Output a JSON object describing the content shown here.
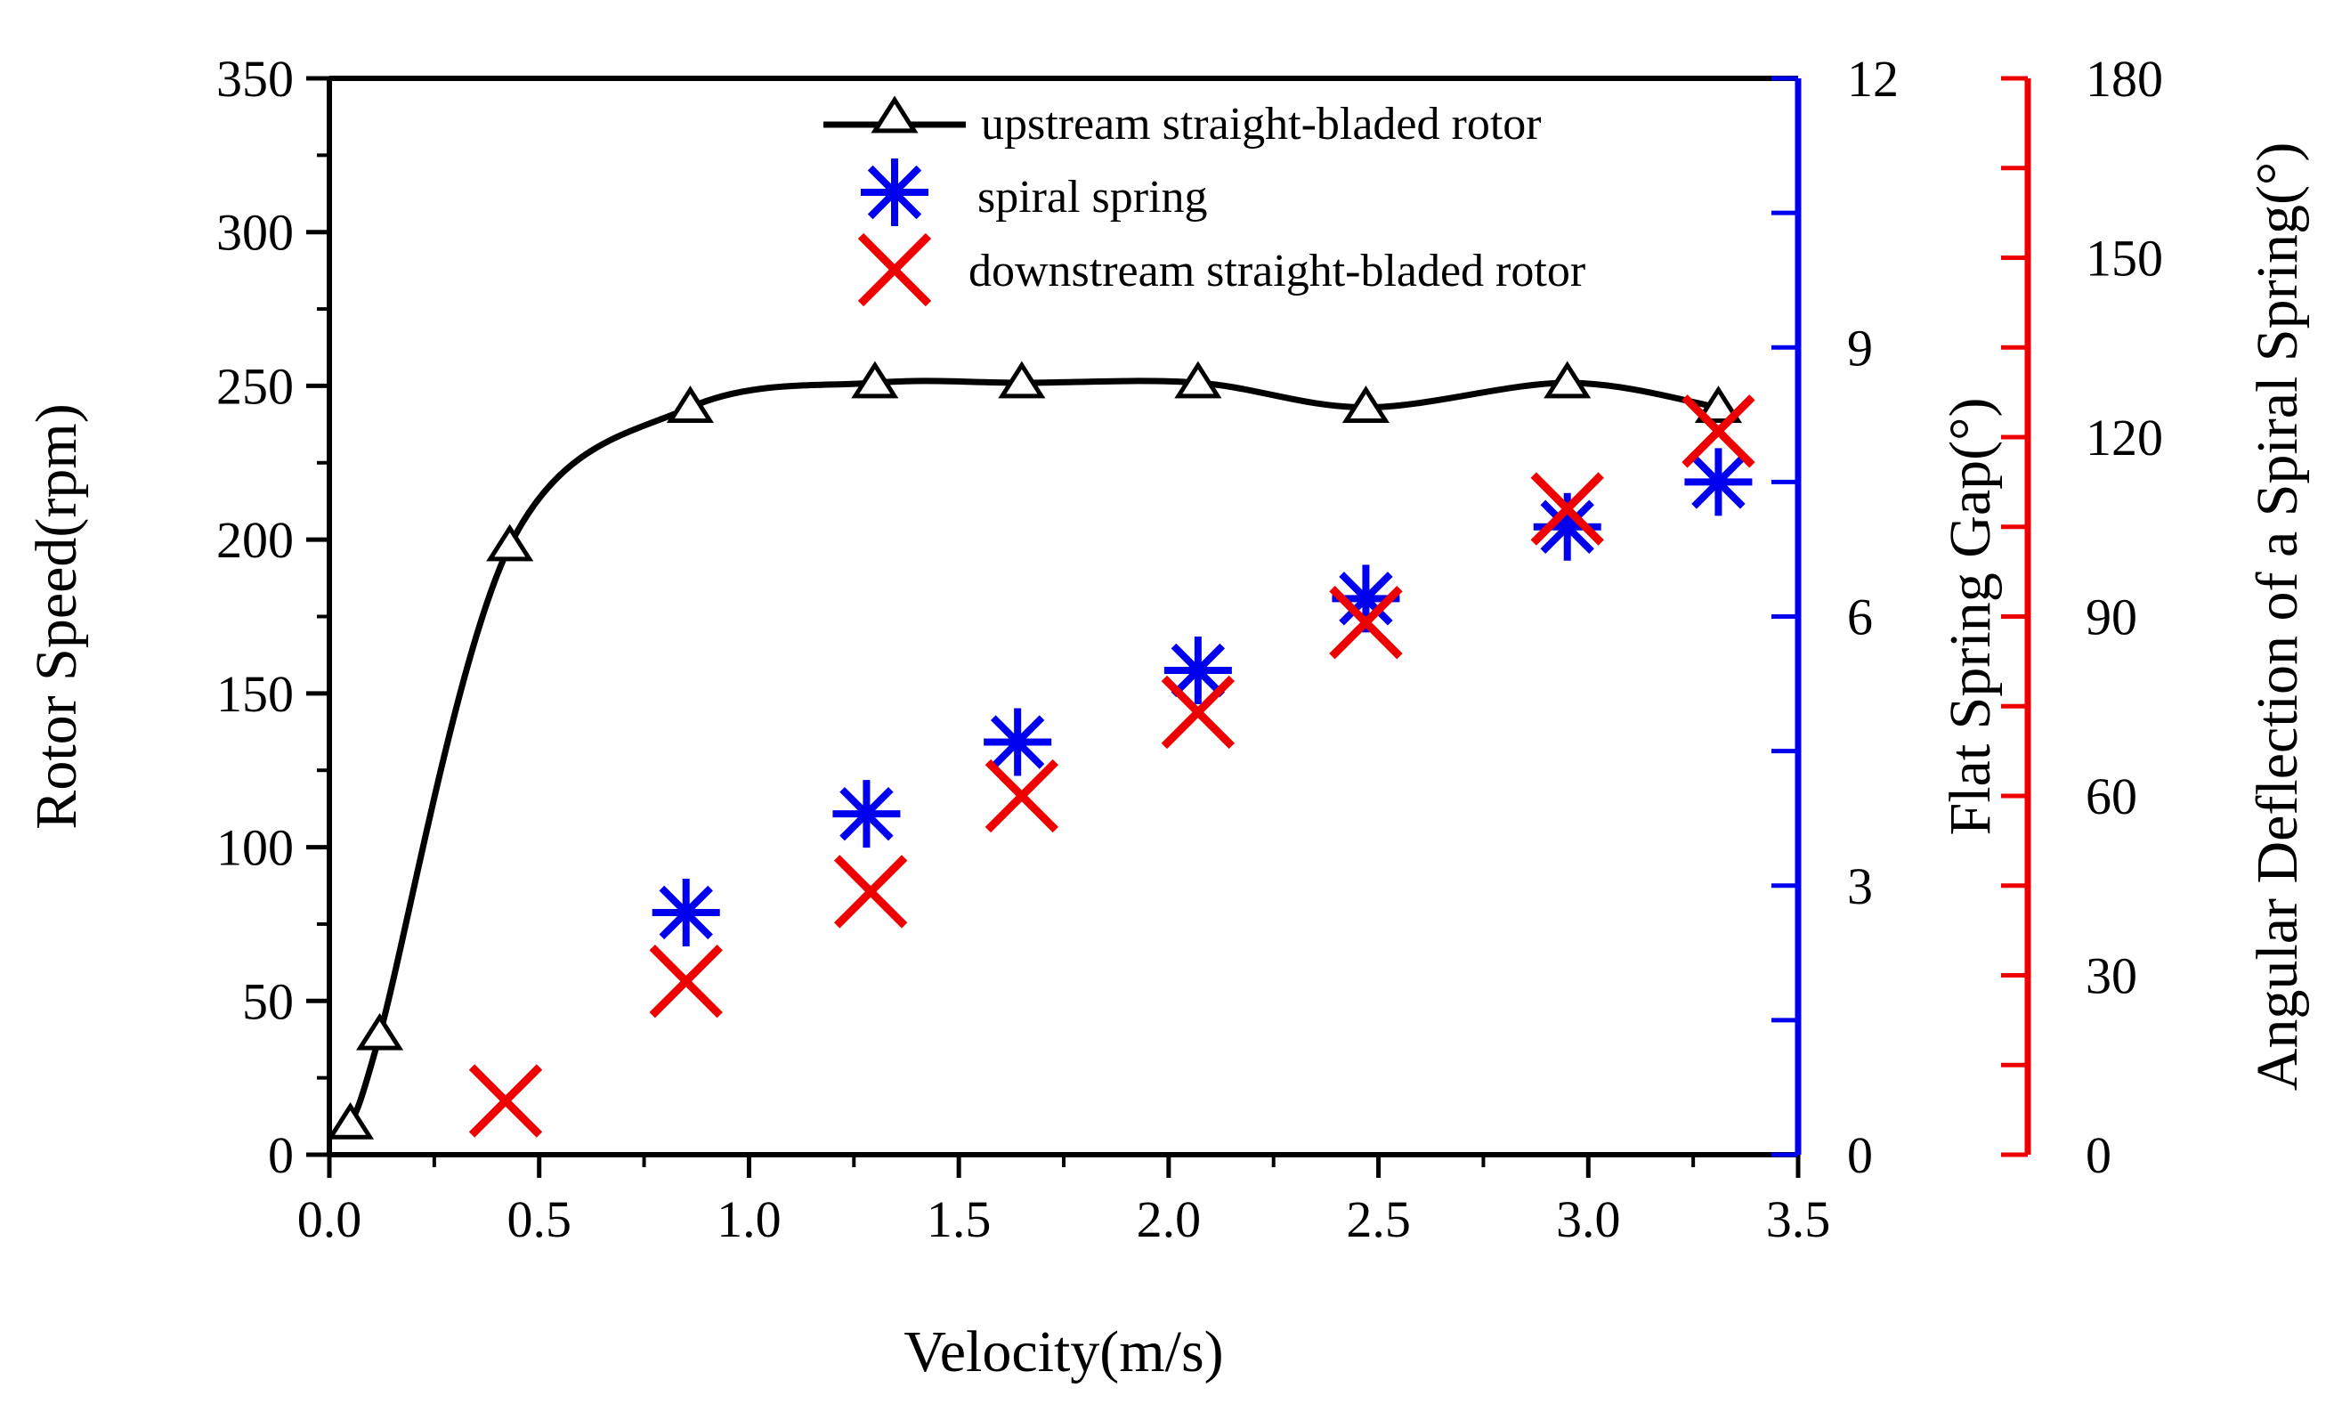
{
  "chart_data": {
    "type": "scatter",
    "xlabel": "Velocity(m/s)",
    "ylabel": "Rotor Speed(rpm)",
    "ylabel_right1": "Flat Spring Gap(°)",
    "ylabel_right2": "Angular Deflection of a Spiral Spring(°)",
    "xlim": [
      0,
      3.5
    ],
    "ylim": [
      0,
      350
    ],
    "ylim_right1": [
      0,
      12
    ],
    "ylim_right2": [
      0,
      180
    ],
    "x_ticks": [
      "0.0",
      "0.5",
      "1.0",
      "1.5",
      "2.0",
      "2.5",
      "3.0",
      "3.5"
    ],
    "y_ticks": [
      "0",
      "50",
      "100",
      "150",
      "200",
      "250",
      "300",
      "350"
    ],
    "y_ticks_right1": [
      "0",
      "3",
      "6",
      "9",
      "12"
    ],
    "y_ticks_right2": [
      "0",
      "30",
      "60",
      "90",
      "120",
      "150",
      "180"
    ],
    "grid": false,
    "legend_position": "top-right",
    "series": [
      {
        "name": "upstream straight-bladed rotor",
        "axis": "left",
        "marker": "triangle",
        "line": true,
        "color": "#000000",
        "x": [
          0.05,
          0.12,
          0.43,
          0.86,
          1.3,
          1.65,
          2.07,
          2.47,
          2.95,
          3.31
        ],
        "values": [
          10,
          39,
          198,
          243,
          251,
          251,
          251,
          243,
          251,
          243
        ]
      },
      {
        "name": "spiral spring",
        "axis": "right1",
        "marker": "asterisk",
        "line": false,
        "color": "#0000ee",
        "x": [
          0.85,
          1.28,
          1.64,
          2.07,
          2.47,
          2.95,
          3.31
        ],
        "values": [
          2.7,
          3.8,
          4.6,
          5.4,
          6.2,
          7.0,
          7.5
        ]
      },
      {
        "name": "downstream straight-bladed rotor",
        "axis": "right2",
        "marker": "cross",
        "line": false,
        "color": "#ee0000",
        "x": [
          0.42,
          0.85,
          1.29,
          1.65,
          2.07,
          2.47,
          2.95,
          3.31
        ],
        "values": [
          9,
          29,
          44,
          60,
          74,
          89,
          108,
          121
        ]
      }
    ]
  }
}
